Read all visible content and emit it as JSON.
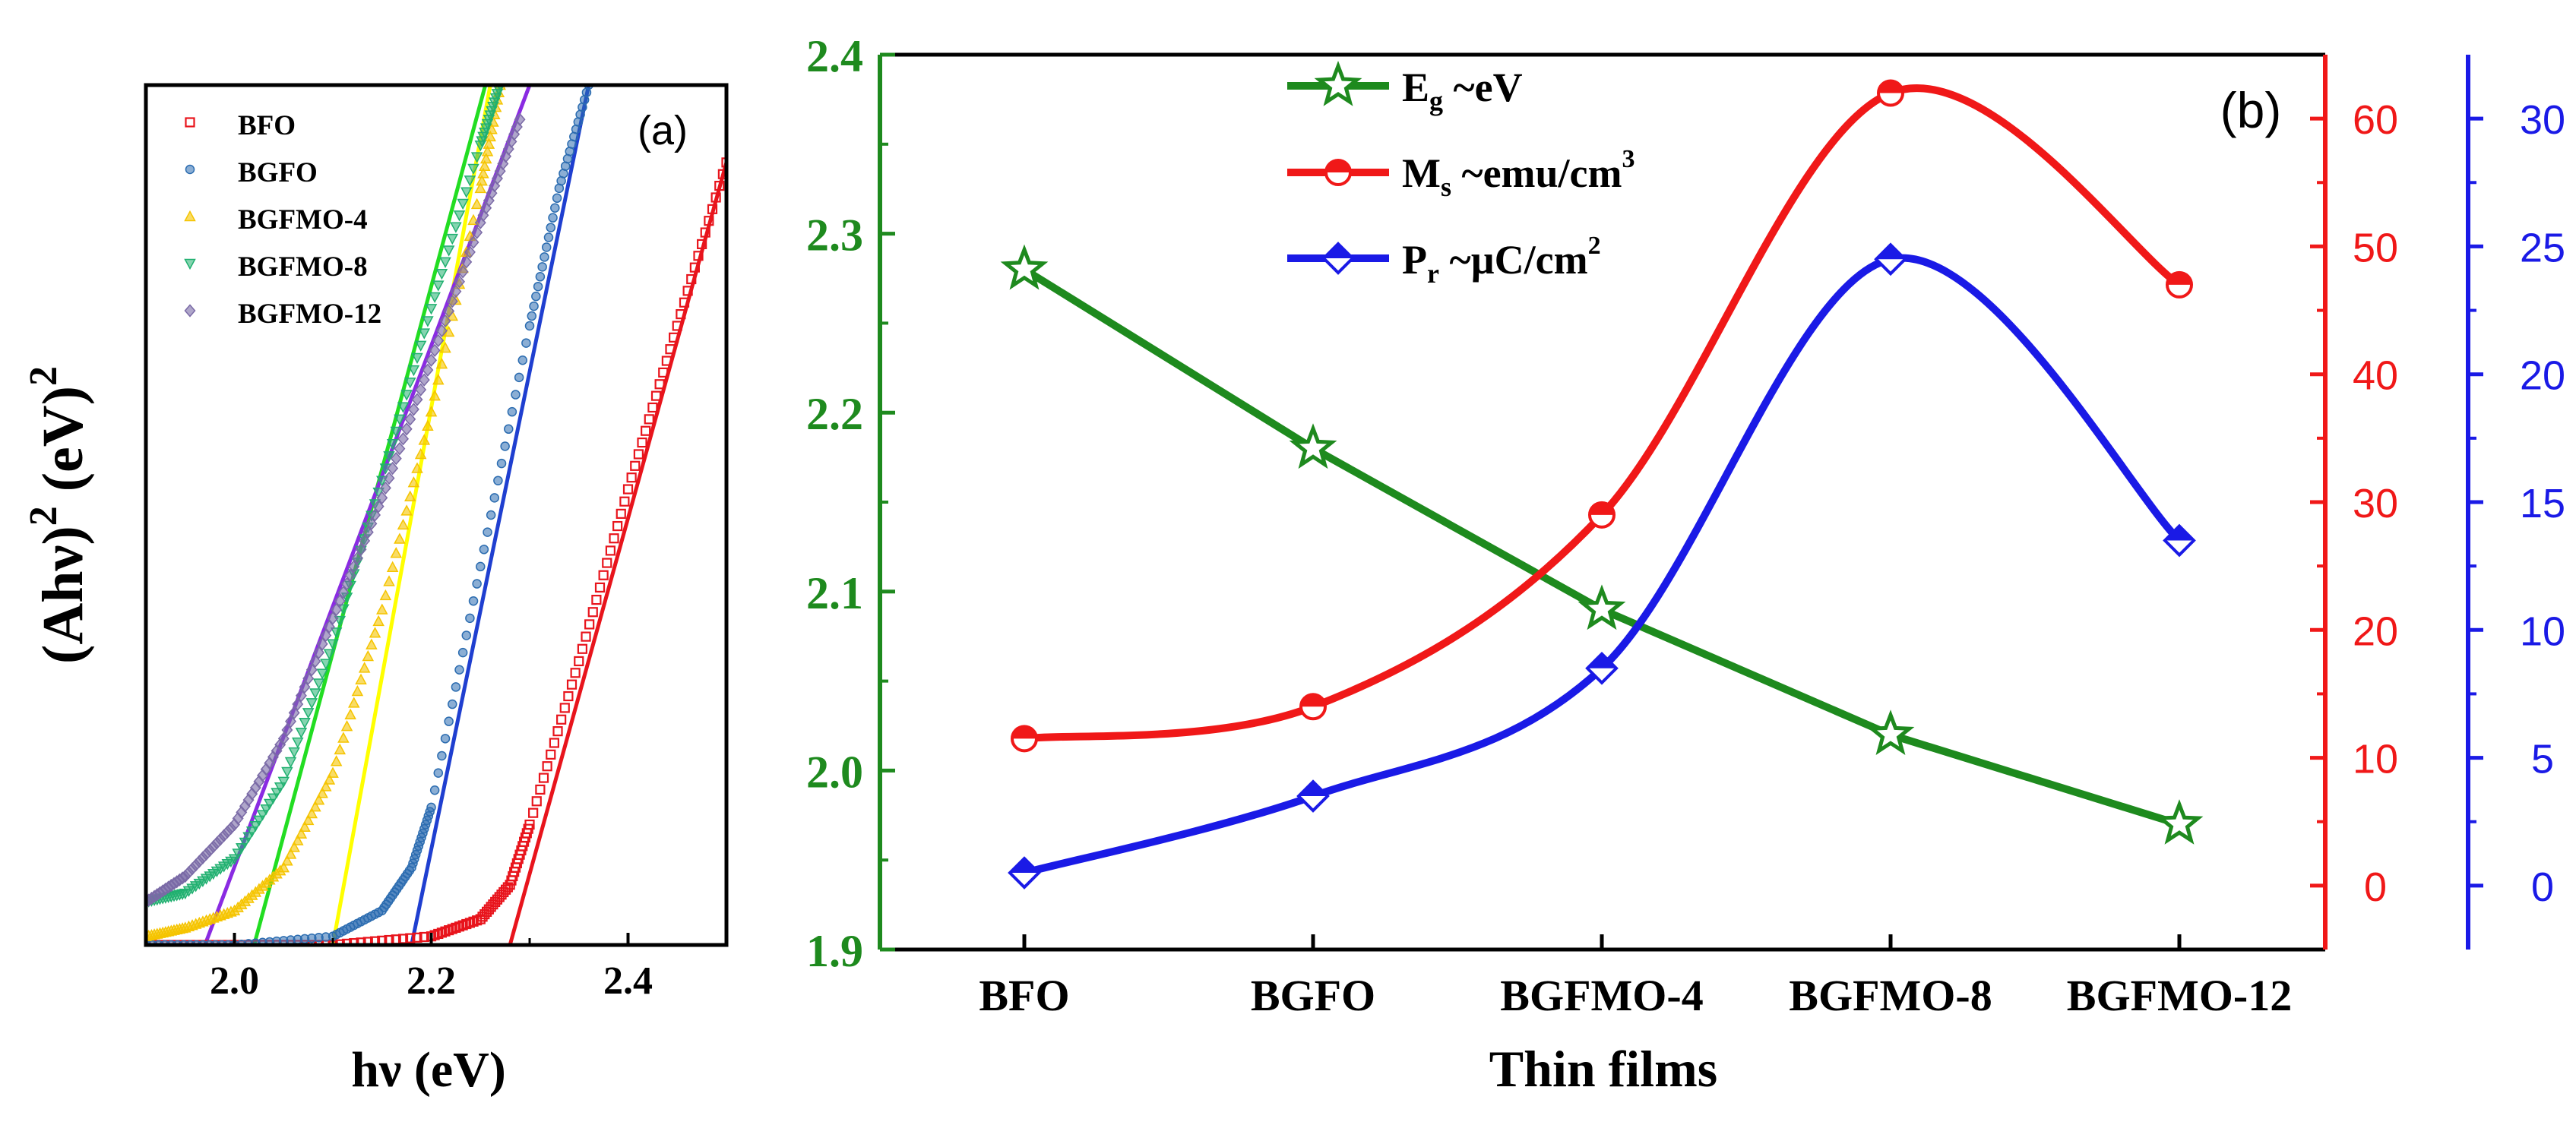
{
  "chart_data": [
    {
      "panel": "(a)",
      "type": "scatter",
      "title": "",
      "xlabel": "hν (eV)",
      "ylabel_parts": [
        "(Ahν)",
        "2",
        " (eV)",
        "2"
      ],
      "xlim": [
        1.91,
        2.5
      ],
      "ylim": [
        0,
        1
      ],
      "xticks": [
        2.0,
        2.2,
        2.4
      ],
      "xtick_labels": [
        "2.0",
        "2.2",
        "2.4"
      ],
      "y_tick_labels_shown": false,
      "legend_position": "top-left",
      "series": [
        {
          "name": "BFO",
          "color": "#e8141c",
          "marker": "square",
          "band_gap_eV": 2.28,
          "x": [
            1.91,
            2.0,
            2.1,
            2.2,
            2.25,
            2.28,
            2.3,
            2.35,
            2.4,
            2.45,
            2.5
          ],
          "y": [
            0.0,
            0.0,
            0.0,
            0.01,
            0.03,
            0.07,
            0.14,
            0.33,
            0.53,
            0.72,
            0.91
          ]
        },
        {
          "name": "BGFO",
          "color": "#2b6cb0",
          "marker": "circle",
          "band_gap_eV": 2.18,
          "x": [
            1.91,
            2.0,
            2.1,
            2.15,
            2.18,
            2.2,
            2.25,
            2.3,
            2.33,
            2.36
          ],
          "y": [
            0.0,
            0.0,
            0.01,
            0.04,
            0.09,
            0.16,
            0.44,
            0.72,
            0.88,
            1.0
          ]
        },
        {
          "name": "BGFMO-4",
          "color": "#f5c400",
          "marker": "triangle-up",
          "band_gap_eV": 2.1,
          "x": [
            1.91,
            1.95,
            2.0,
            2.05,
            2.1,
            2.15,
            2.2,
            2.25,
            2.27
          ],
          "y": [
            0.01,
            0.02,
            0.04,
            0.09,
            0.2,
            0.39,
            0.62,
            0.88,
            1.0
          ]
        },
        {
          "name": "BGFMO-8",
          "color": "#20b070",
          "marker": "triangle-down",
          "band_gap_eV": 2.02,
          "x": [
            1.91,
            1.95,
            2.0,
            2.05,
            2.1,
            2.15,
            2.2,
            2.25,
            2.27
          ],
          "y": [
            0.05,
            0.06,
            0.1,
            0.19,
            0.35,
            0.54,
            0.74,
            0.93,
            1.0
          ]
        },
        {
          "name": "BGFMO-12",
          "color": "#7a6aa6",
          "marker": "diamond",
          "band_gap_eV": 1.97,
          "x": [
            1.91,
            1.95,
            2.0,
            2.05,
            2.1,
            2.15,
            2.2,
            2.25,
            2.29
          ],
          "y": [
            0.05,
            0.08,
            0.14,
            0.24,
            0.38,
            0.52,
            0.68,
            0.84,
            0.96
          ]
        }
      ],
      "fit_lines": [
        {
          "series": "BFO",
          "color": "#e8141c",
          "x": [
            2.28,
            2.5
          ],
          "y": [
            0.0,
            0.91
          ]
        },
        {
          "series": "BGFO",
          "color": "#1f3fd0",
          "x": [
            2.18,
            2.36
          ],
          "y": [
            0.0,
            1.0
          ]
        },
        {
          "series": "BGFMO-4",
          "color": "#ffff00",
          "x": [
            2.1,
            2.26
          ],
          "y": [
            0.0,
            1.0
          ]
        },
        {
          "series": "BGFMO-8",
          "color": "#22dd22",
          "x": [
            2.02,
            2.255
          ],
          "y": [
            0.0,
            1.0
          ]
        },
        {
          "series": "BGFMO-12",
          "color": "#8a2be2",
          "x": [
            1.97,
            2.3
          ],
          "y": [
            0.0,
            1.0
          ]
        }
      ]
    },
    {
      "panel": "(b)",
      "type": "line",
      "title": "",
      "xlabel": "Thin films",
      "categories": [
        "BFO",
        "BGFO",
        "BGFMO-4",
        "BGFMO-8",
        "BGFMO-12"
      ],
      "legend_position": "top-center",
      "legend": [
        {
          "parts": [
            "E",
            "g",
            " ~eV"
          ]
        },
        {
          "parts": [
            "M",
            "s",
            " ~emu/cm",
            "3"
          ]
        },
        {
          "parts": [
            "P",
            "r",
            "  ~µC/cm",
            "2"
          ]
        }
      ],
      "axes": {
        "left": {
          "color": "#1e8a1e",
          "lim": [
            1.9,
            2.4
          ],
          "ticks": [
            1.9,
            2.0,
            2.1,
            2.2,
            2.3,
            2.4
          ],
          "tick_labels": [
            "1.9",
            "2.0",
            "2.1",
            "2.2",
            "2.3",
            "2.4"
          ]
        },
        "right1": {
          "color": "#f01818",
          "lim": [
            -5,
            65
          ],
          "ticks": [
            0,
            10,
            20,
            30,
            40,
            50,
            60
          ],
          "tick_labels": [
            "0",
            "10",
            "20",
            "30",
            "40",
            "50",
            "60"
          ]
        },
        "right2": {
          "color": "#1a1ae6",
          "lim": [
            -2.5,
            32.5
          ],
          "ticks": [
            0,
            5,
            10,
            15,
            20,
            25,
            30
          ],
          "tick_labels": [
            "0",
            "5",
            "10",
            "15",
            "20",
            "25",
            "30"
          ]
        }
      },
      "series": [
        {
          "name": "E_g ~eV",
          "axis": "left",
          "color": "#1e8a1e",
          "marker": "star",
          "values": [
            2.28,
            2.18,
            2.09,
            2.02,
            1.97
          ]
        },
        {
          "name": "M_s ~emu/cm3",
          "axis": "right1",
          "color": "#f01818",
          "marker": "half-circle",
          "values": [
            11.5,
            14.0,
            29.0,
            62.0,
            47.0
          ]
        },
        {
          "name": "P_r ~µC/cm2",
          "axis": "right2",
          "color": "#1a1ae6",
          "marker": "half-diamond",
          "values": [
            0.5,
            3.5,
            8.5,
            24.5,
            13.5
          ]
        }
      ]
    }
  ]
}
